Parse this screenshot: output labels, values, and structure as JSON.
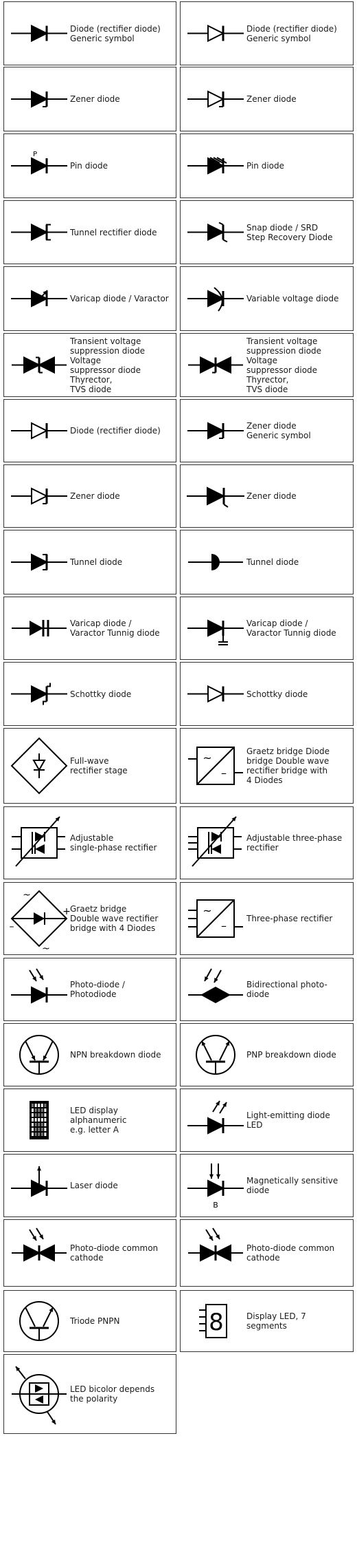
{
  "cells": [
    {
      "label": "Diode (rectifier diode)\nGeneric symbol",
      "icon": "diode-icon"
    },
    {
      "label": "Diode (rectifier diode)\nGeneric symbol",
      "icon": "diode-outline-icon"
    },
    {
      "label": "Zener diode",
      "icon": "zener-diode-icon"
    },
    {
      "label": "Zener diode",
      "icon": "zener-diode-outline-icon"
    },
    {
      "label": "Pin diode",
      "icon": "pin-diode-icon",
      "mark": "P"
    },
    {
      "label": "Pin diode",
      "icon": "pin-diode-hatched-icon"
    },
    {
      "label": "Tunnel rectifier diode",
      "icon": "tunnel-rectifier-diode-icon"
    },
    {
      "label": "Snap diode / SRD\nStep Recovery Diode",
      "icon": "snap-diode-icon"
    },
    {
      "label": "Varicap diode / Varactor",
      "icon": "varicap-diode-icon"
    },
    {
      "label": "Variable voltage diode",
      "icon": "variable-voltage-diode-icon"
    },
    {
      "label": "Transient voltage\nsuppression diode Voltage\nsuppressor diode Thyrector,\nTVS diode",
      "icon": "tvs-diode-icon"
    },
    {
      "label": "Transient voltage\nsuppression diode Voltage\nsuppressor diode Thyrector,\nTVS diode",
      "icon": "tvs-diode-alt-icon"
    },
    {
      "label": "Diode (rectifier diode)",
      "icon": "diode-outline-icon"
    },
    {
      "label": "Zener diode\nGeneric symbol",
      "icon": "zener-diode-icon"
    },
    {
      "label": "Zener diode",
      "icon": "zener-diode-outline-icon"
    },
    {
      "label": "Zener diode",
      "icon": "zener-diode-alt-icon"
    },
    {
      "label": "Tunnel diode",
      "icon": "tunnel-diode-icon"
    },
    {
      "label": "Tunnel diode",
      "icon": "tunnel-diode-semicircle-icon"
    },
    {
      "label": "Varicap diode /\nVaractor Tunnig diode",
      "icon": "varactor-capacitor-icon"
    },
    {
      "label": "Varicap diode /\nVaractor Tunnig diode",
      "icon": "varactor-tuning-icon"
    },
    {
      "label": "Schottky diode",
      "icon": "schottky-diode-icon"
    },
    {
      "label": "Schottky diode",
      "icon": "schottky-diode-outline-icon"
    },
    {
      "label": "Full-wave\nrectifier stage",
      "icon": "full-wave-rectifier-icon"
    },
    {
      "label": "Graetz bridge Diode\nbridge Double wave\nrectifier bridge with\n4 Diodes",
      "icon": "rectifier-box-icon",
      "marks": [
        "~",
        "–"
      ]
    },
    {
      "label": "Adjustable\nsingle-phase rectifier",
      "icon": "adjustable-single-phase-rectifier-icon"
    },
    {
      "label": "Adjustable three-phase\nrectifier",
      "icon": "adjustable-three-phase-rectifier-icon"
    },
    {
      "label": "Graetz bridge\nDouble wave rectifier\nbridge with 4 Diodes",
      "icon": "graetz-bridge-icon",
      "marks": [
        "~",
        "+",
        "–",
        "~"
      ]
    },
    {
      "label": "Three-phase rectifier",
      "icon": "three-phase-rectifier-icon",
      "marks": [
        "~",
        "–"
      ]
    },
    {
      "label": "Photo-diode / Photodiode",
      "icon": "photodiode-icon"
    },
    {
      "label": "Bidirectional photo-diode",
      "icon": "bidirectional-photodiode-icon"
    },
    {
      "label": "NPN breakdown diode",
      "icon": "npn-breakdown-diode-icon"
    },
    {
      "label": "PNP breakdown diode",
      "icon": "pnp-breakdown-diode-icon"
    },
    {
      "label": "LED display alphanumeric\ne.g. letter A",
      "icon": "led-matrix-display-icon"
    },
    {
      "label": "Light-emitting diode\nLED",
      "icon": "led-icon"
    },
    {
      "label": "Laser diode",
      "icon": "laser-diode-icon"
    },
    {
      "label": "Magnetically sensitive\ndiode",
      "icon": "magnetic-diode-icon",
      "mark": "B"
    },
    {
      "label": "Photo-diode common\ncathode",
      "icon": "photodiode-common-cathode-icon"
    },
    {
      "label": "Photo-diode common\ncathode",
      "icon": "photodiode-common-cathode-alt-icon"
    },
    {
      "label": "Triode PNPN",
      "icon": "triode-pnpn-icon"
    },
    {
      "label": "Display LED, 7 segments",
      "icon": "seven-segment-display-icon",
      "mark": "8"
    },
    {
      "label": "LED bicolor depends\nthe polarity",
      "icon": "bicolor-led-icon"
    }
  ]
}
